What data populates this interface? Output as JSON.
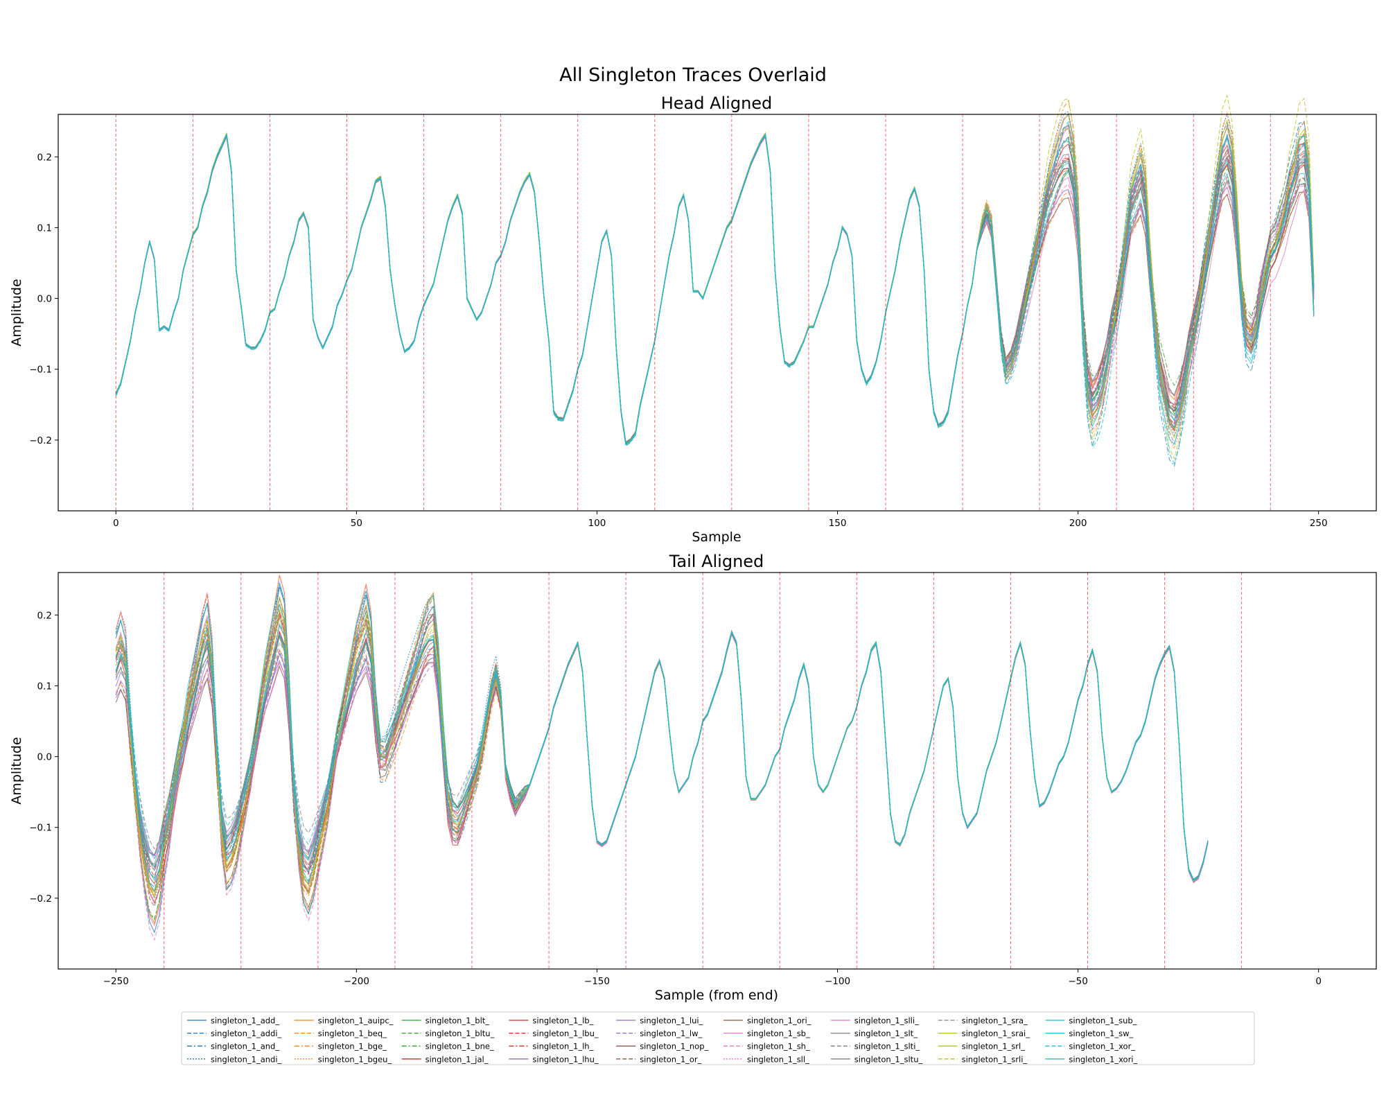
{
  "figure": {
    "suptitle": "All Singleton Traces Overlaid"
  },
  "chart_data": [
    {
      "type": "line",
      "title": "Head Aligned",
      "xlabel": "Sample",
      "ylabel": "Amplitude",
      "xlim": [
        -12,
        262
      ],
      "ylim": [
        -0.3,
        0.26
      ],
      "xticks": [
        0,
        50,
        100,
        150,
        200,
        250
      ],
      "xtick_labels": [
        "0",
        "50",
        "100",
        "150",
        "200",
        "250"
      ],
      "yticks": [
        -0.2,
        -0.1,
        0.0,
        0.1,
        0.2
      ],
      "ytick_labels": [
        "−0.2",
        "−0.1",
        "0.0",
        "0.1",
        "0.2"
      ],
      "vlines": [
        0,
        16,
        32,
        48,
        64,
        80,
        96,
        112,
        128,
        144,
        160,
        176,
        192,
        208,
        224,
        240
      ],
      "vline_color": "#ff0000",
      "x_start": 0,
      "x_step": 1,
      "spread_from_x": 180,
      "mean_trace": [
        -0.135,
        -0.12,
        -0.09,
        -0.06,
        -0.02,
        0.01,
        0.05,
        0.08,
        0.055,
        -0.045,
        -0.04,
        -0.045,
        -0.02,
        0.0,
        0.04,
        0.065,
        0.09,
        0.1,
        0.13,
        0.15,
        0.18,
        0.2,
        0.215,
        0.23,
        0.18,
        0.04,
        -0.01,
        -0.065,
        -0.07,
        -0.07,
        -0.06,
        -0.045,
        -0.02,
        -0.015,
        0.01,
        0.03,
        0.06,
        0.08,
        0.11,
        0.12,
        0.1,
        -0.03,
        -0.055,
        -0.07,
        -0.055,
        -0.04,
        -0.01,
        0.005,
        0.025,
        0.04,
        0.07,
        0.1,
        0.12,
        0.14,
        0.165,
        0.17,
        0.13,
        0.04,
        -0.01,
        -0.05,
        -0.075,
        -0.07,
        -0.06,
        -0.03,
        -0.01,
        0.005,
        0.02,
        0.05,
        0.08,
        0.11,
        0.13,
        0.145,
        0.12,
        0.0,
        -0.015,
        -0.03,
        -0.02,
        0.0,
        0.02,
        0.05,
        0.06,
        0.08,
        0.11,
        0.13,
        0.15,
        0.165,
        0.175,
        0.15,
        0.08,
        0.0,
        -0.06,
        -0.16,
        -0.17,
        -0.17,
        -0.15,
        -0.13,
        -0.1,
        -0.08,
        -0.04,
        0.0,
        0.04,
        0.08,
        0.095,
        0.06,
        -0.07,
        -0.16,
        -0.205,
        -0.2,
        -0.19,
        -0.15,
        -0.12,
        -0.09,
        -0.06,
        -0.02,
        0.02,
        0.06,
        0.09,
        0.13,
        0.145,
        0.11,
        0.01,
        0.01,
        0.0,
        0.02,
        0.04,
        0.06,
        0.08,
        0.1,
        0.11,
        0.13,
        0.15,
        0.17,
        0.19,
        0.205,
        0.22,
        0.23,
        0.18,
        0.04,
        -0.04,
        -0.09,
        -0.095,
        -0.09,
        -0.075,
        -0.06,
        -0.04,
        -0.04,
        -0.02,
        0.0,
        0.02,
        0.05,
        0.07,
        0.1,
        0.09,
        0.06,
        -0.06,
        -0.1,
        -0.12,
        -0.11,
        -0.09,
        -0.06,
        -0.02,
        0.01,
        0.04,
        0.08,
        0.11,
        0.14,
        0.155,
        0.13,
        0.04,
        -0.1,
        -0.16,
        -0.18,
        -0.175,
        -0.16,
        -0.12,
        -0.08,
        -0.05,
        -0.01,
        0.02,
        0.07,
        0.1,
        0.12,
        0.1,
        0.02,
        -0.06,
        -0.1,
        -0.09,
        -0.07,
        -0.04,
        -0.01,
        0.02,
        0.05,
        0.08,
        0.11,
        0.14,
        0.16,
        0.18,
        0.195,
        0.2,
        0.17,
        0.1,
        -0.04,
        -0.12,
        -0.15,
        -0.14,
        -0.12,
        -0.09,
        -0.05,
        -0.02,
        0.02,
        0.07,
        0.12,
        0.14,
        0.16,
        0.13,
        0.04,
        -0.04,
        -0.1,
        -0.13,
        -0.16,
        -0.17,
        -0.15,
        -0.12,
        -0.08,
        -0.05,
        -0.02,
        0.02,
        0.06,
        0.1,
        0.14,
        0.18,
        0.195,
        0.17,
        0.1,
        0.0,
        -0.05,
        -0.06,
        -0.04,
        0.0,
        0.03,
        0.06,
        0.07,
        0.09,
        0.11,
        0.14,
        0.16,
        0.185,
        0.19,
        0.15,
        0.0
      ]
    },
    {
      "type": "line",
      "title": "Tail Aligned",
      "xlabel": "Sample (from end)",
      "ylabel": "Amplitude",
      "xlim": [
        -262,
        12
      ],
      "ylim": [
        -0.3,
        0.26
      ],
      "xticks": [
        -250,
        -200,
        -150,
        -100,
        -50,
        0
      ],
      "xtick_labels": [
        "−250",
        "−200",
        "−150",
        "−100",
        "−50",
        "0"
      ],
      "yticks": [
        -0.2,
        -0.1,
        0.0,
        0.1,
        0.2
      ],
      "ytick_labels": [
        "−0.2",
        "−0.1",
        "0.0",
        "0.1",
        "0.2"
      ],
      "vlines": [
        -240,
        -224,
        -208,
        -192,
        -176,
        -160,
        -144,
        -128,
        -112,
        -96,
        -80,
        -64,
        -48,
        -32,
        -16
      ],
      "vline_color": "#ff0000",
      "x_start": -250,
      "x_step": 1,
      "spread_until_x": -165,
      "mean_trace": [
        0.13,
        0.15,
        0.13,
        0.04,
        -0.04,
        -0.1,
        -0.14,
        -0.17,
        -0.18,
        -0.16,
        -0.12,
        -0.09,
        -0.05,
        -0.01,
        0.02,
        0.06,
        0.09,
        0.12,
        0.15,
        0.17,
        0.12,
        0.0,
        -0.1,
        -0.14,
        -0.13,
        -0.11,
        -0.08,
        -0.05,
        -0.02,
        0.02,
        0.06,
        0.1,
        0.13,
        0.16,
        0.19,
        0.17,
        0.08,
        -0.05,
        -0.12,
        -0.16,
        -0.17,
        -0.15,
        -0.12,
        -0.09,
        -0.06,
        -0.02,
        0.02,
        0.05,
        0.08,
        0.11,
        0.14,
        0.16,
        0.18,
        0.15,
        0.06,
        0.0,
        0.0,
        0.02,
        0.04,
        0.06,
        0.08,
        0.1,
        0.12,
        0.14,
        0.16,
        0.175,
        0.18,
        0.12,
        0.02,
        -0.06,
        -0.09,
        -0.095,
        -0.08,
        -0.06,
        -0.04,
        -0.02,
        0.01,
        0.05,
        0.09,
        0.115,
        0.08,
        -0.02,
        -0.05,
        -0.07,
        -0.06,
        -0.05,
        -0.04,
        -0.02,
        0.0,
        0.02,
        0.04,
        0.07,
        0.09,
        0.11,
        0.13,
        0.145,
        0.16,
        0.12,
        0.02,
        -0.07,
        -0.12,
        -0.125,
        -0.12,
        -0.1,
        -0.08,
        -0.06,
        -0.04,
        -0.02,
        0.0,
        0.03,
        0.06,
        0.09,
        0.12,
        0.135,
        0.11,
        0.04,
        -0.02,
        -0.05,
        -0.04,
        -0.03,
        0.0,
        0.02,
        0.05,
        0.06,
        0.08,
        0.1,
        0.12,
        0.15,
        0.175,
        0.16,
        0.08,
        -0.03,
        -0.06,
        -0.06,
        -0.05,
        -0.04,
        -0.02,
        0.0,
        0.01,
        0.04,
        0.06,
        0.08,
        0.11,
        0.13,
        0.1,
        0.0,
        -0.04,
        -0.05,
        -0.04,
        -0.02,
        0.0,
        0.02,
        0.04,
        0.05,
        0.07,
        0.1,
        0.12,
        0.15,
        0.16,
        0.12,
        0.02,
        -0.08,
        -0.12,
        -0.125,
        -0.11,
        -0.08,
        -0.06,
        -0.04,
        -0.02,
        0.01,
        0.04,
        0.07,
        0.1,
        0.11,
        0.07,
        -0.03,
        -0.08,
        -0.1,
        -0.09,
        -0.08,
        -0.05,
        -0.02,
        0.0,
        0.02,
        0.05,
        0.08,
        0.11,
        0.14,
        0.16,
        0.13,
        0.04,
        -0.03,
        -0.07,
        -0.065,
        -0.05,
        -0.03,
        -0.01,
        0.0,
        0.02,
        0.05,
        0.08,
        0.1,
        0.13,
        0.15,
        0.12,
        0.03,
        -0.03,
        -0.05,
        -0.045,
        -0.035,
        -0.02,
        0.0,
        0.02,
        0.03,
        0.05,
        0.08,
        0.11,
        0.13,
        0.145,
        0.155,
        0.12,
        0.02,
        -0.1,
        -0.16,
        -0.175,
        -0.17,
        -0.15,
        -0.12
      ]
    }
  ],
  "legend": {
    "columns": 10,
    "entries": [
      {
        "label": "singleton_1_add_",
        "color": "#1f77b4",
        "dash": "solid"
      },
      {
        "label": "singleton_1_addi_",
        "color": "#1f77b4",
        "dash": "dashed"
      },
      {
        "label": "singleton_1_and_",
        "color": "#1f77b4",
        "dash": "dashdot"
      },
      {
        "label": "singleton_1_andi_",
        "color": "#1f77b4",
        "dash": "dotted"
      },
      {
        "label": "singleton_1_auipc_",
        "color": "#ff7f0e",
        "dash": "solid"
      },
      {
        "label": "singleton_1_beq_",
        "color": "#ff7f0e",
        "dash": "dashed"
      },
      {
        "label": "singleton_1_bge_",
        "color": "#ff7f0e",
        "dash": "dashdot"
      },
      {
        "label": "singleton_1_bgeu_",
        "color": "#ff7f0e",
        "dash": "dotted"
      },
      {
        "label": "singleton_1_blt_",
        "color": "#2ca02c",
        "dash": "solid"
      },
      {
        "label": "singleton_1_bltu_",
        "color": "#2ca02c",
        "dash": "dashed"
      },
      {
        "label": "singleton_1_bne_",
        "color": "#2ca02c",
        "dash": "dashdot"
      },
      {
        "label": "singleton_1_jal_",
        "color": "#d62728",
        "dash": "solid"
      },
      {
        "label": "singleton_1_lb_",
        "color": "#d62728",
        "dash": "solid"
      },
      {
        "label": "singleton_1_lbu_",
        "color": "#d62728",
        "dash": "dashed"
      },
      {
        "label": "singleton_1_lh_",
        "color": "#d62728",
        "dash": "dashdot"
      },
      {
        "label": "singleton_1_lhu_",
        "color": "#9467bd",
        "dash": "solid"
      },
      {
        "label": "singleton_1_lui_",
        "color": "#9467bd",
        "dash": "solid"
      },
      {
        "label": "singleton_1_lw_",
        "color": "#9467bd",
        "dash": "dashed"
      },
      {
        "label": "singleton_1_nop_",
        "color": "#8c564b",
        "dash": "solid"
      },
      {
        "label": "singleton_1_or_",
        "color": "#8c564b",
        "dash": "dashed"
      },
      {
        "label": "singleton_1_ori_",
        "color": "#8c564b",
        "dash": "solid"
      },
      {
        "label": "singleton_1_sb_",
        "color": "#e377c2",
        "dash": "solid"
      },
      {
        "label": "singleton_1_sh_",
        "color": "#e377c2",
        "dash": "dashed"
      },
      {
        "label": "singleton_1_sll_",
        "color": "#e377c2",
        "dash": "dotted"
      },
      {
        "label": "singleton_1_slli_",
        "color": "#e377c2",
        "dash": "solid"
      },
      {
        "label": "singleton_1_slt_",
        "color": "#7f7f7f",
        "dash": "solid"
      },
      {
        "label": "singleton_1_slti_",
        "color": "#7f7f7f",
        "dash": "dashed"
      },
      {
        "label": "singleton_1_sltu_",
        "color": "#7f7f7f",
        "dash": "solid"
      },
      {
        "label": "singleton_1_sra_",
        "color": "#7f7f7f",
        "dash": "dashed"
      },
      {
        "label": "singleton_1_srai_",
        "color": "#bcbd22",
        "dash": "solid"
      },
      {
        "label": "singleton_1_srl_",
        "color": "#bcbd22",
        "dash": "solid"
      },
      {
        "label": "singleton_1_srli_",
        "color": "#bcbd22",
        "dash": "dashed"
      },
      {
        "label": "singleton_1_sub_",
        "color": "#17becf",
        "dash": "solid"
      },
      {
        "label": "singleton_1_sw_",
        "color": "#17becf",
        "dash": "solid"
      },
      {
        "label": "singleton_1_xor_",
        "color": "#17becf",
        "dash": "dashed"
      },
      {
        "label": "singleton_1_xori_",
        "color": "#17becf",
        "dash": "solid"
      }
    ]
  }
}
